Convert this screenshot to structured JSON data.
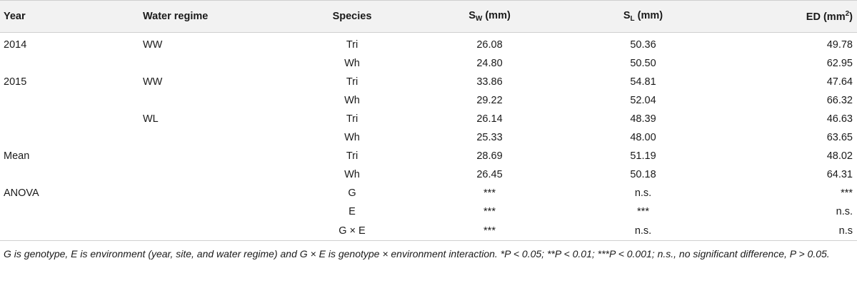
{
  "header": {
    "year": "Year",
    "water_regime": "Water regime",
    "species": "Species",
    "sw_main": "S",
    "sw_sub": "W",
    "sw_unit": " (mm)",
    "sl_main": "S",
    "sl_sub": "L",
    "sl_unit": " (mm)",
    "ed_main": "ED (mm",
    "ed_sup": "2",
    "ed_close": ")"
  },
  "rows": [
    {
      "year": "2014",
      "water": "WW",
      "species": "Tri",
      "sw": "26.08",
      "sl": "50.36",
      "ed": "49.78"
    },
    {
      "year": "",
      "water": "",
      "species": "Wh",
      "sw": "24.80",
      "sl": "50.50",
      "ed": "62.95"
    },
    {
      "year": "2015",
      "water": "WW",
      "species": "Tri",
      "sw": "33.86",
      "sl": "54.81",
      "ed": "47.64"
    },
    {
      "year": "",
      "water": "",
      "species": "Wh",
      "sw": "29.22",
      "sl": "52.04",
      "ed": "66.32"
    },
    {
      "year": "",
      "water": "WL",
      "species": "Tri",
      "sw": "26.14",
      "sl": "48.39",
      "ed": "46.63"
    },
    {
      "year": "",
      "water": "",
      "species": "Wh",
      "sw": "25.33",
      "sl": "48.00",
      "ed": "63.65"
    },
    {
      "year": "Mean",
      "water": "",
      "species": "Tri",
      "sw": "28.69",
      "sl": "51.19",
      "ed": "48.02"
    },
    {
      "year": "",
      "water": "",
      "species": "Wh",
      "sw": "26.45",
      "sl": "50.18",
      "ed": "64.31"
    },
    {
      "year": "ANOVA",
      "water": "",
      "species": "G",
      "sw": "***",
      "sl": "n.s.",
      "ed": "***"
    },
    {
      "year": "",
      "water": "",
      "species": "E",
      "sw": "***",
      "sl": "***",
      "ed": "n.s."
    },
    {
      "year": "",
      "water": "",
      "species": "G × E",
      "sw": "***",
      "sl": "n.s.",
      "ed": "n.s"
    }
  ],
  "footnote": "G is genotype, E is environment (year, site, and water regime) and G × E is genotype × environment interaction. *P < 0.05; **P < 0.01; ***P < 0.001; n.s., no significant difference, P > 0.05."
}
